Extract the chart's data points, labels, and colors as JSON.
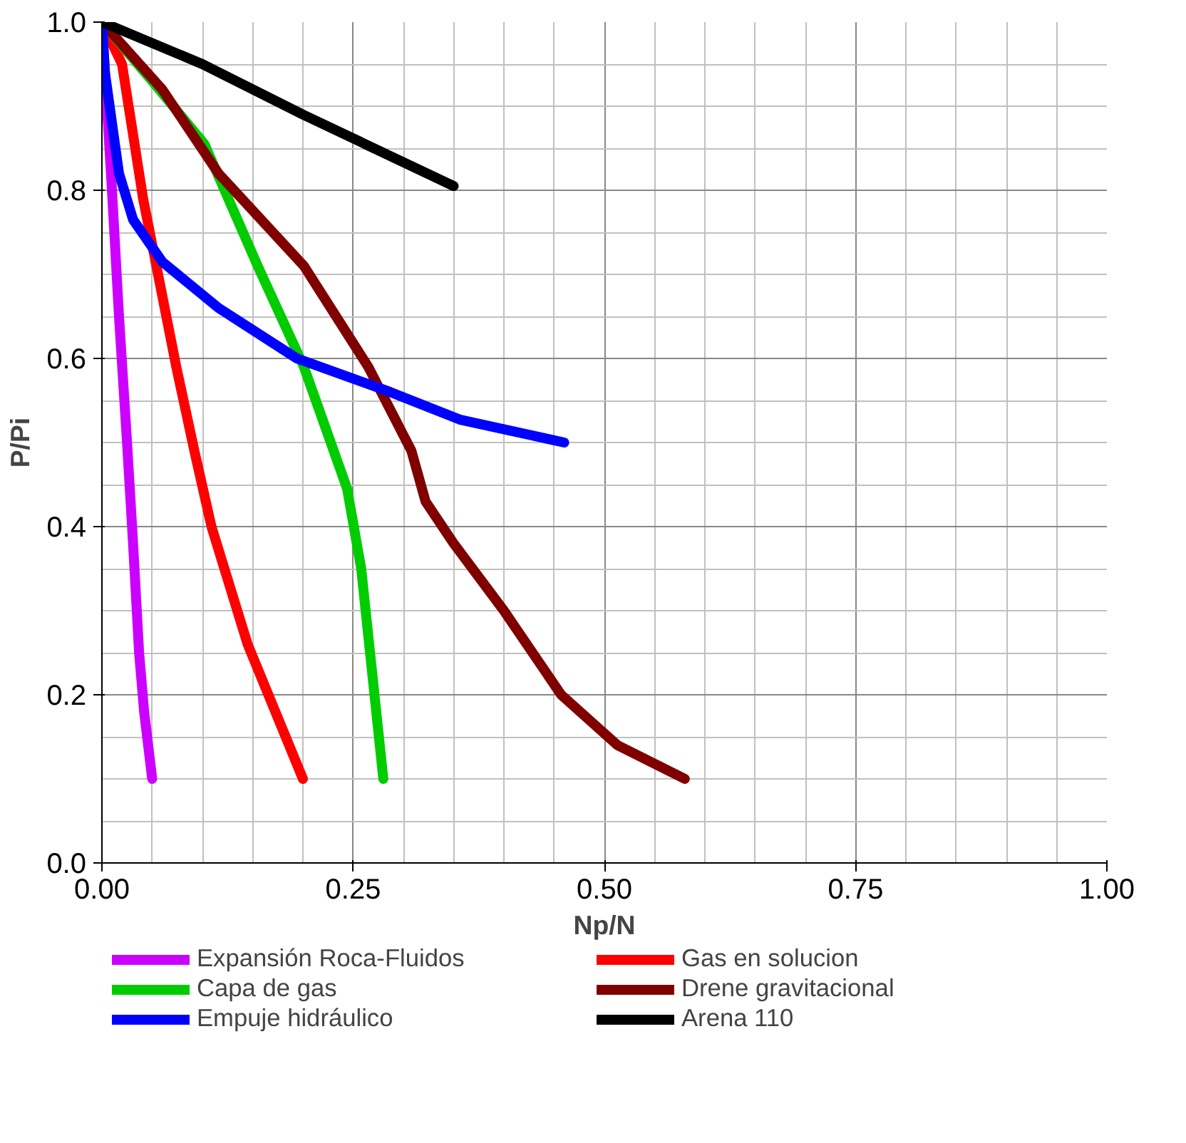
{
  "chart_data": {
    "type": "line",
    "xlabel": "Np/N",
    "ylabel": "P/Pi",
    "xlim": [
      0,
      1
    ],
    "ylim": [
      0,
      1
    ],
    "xticks": [
      {
        "value": 0,
        "label": "0.00"
      },
      0.25,
      {
        "value": 0.5,
        "label": "0.50"
      },
      0.75,
      {
        "value": 1,
        "label": "1.00"
      }
    ],
    "yticks": [
      {
        "value": 0,
        "label": "0.0"
      },
      0.2,
      0.4,
      0.6,
      0.8,
      {
        "value": 1,
        "label": "1.0"
      }
    ],
    "grid": true,
    "legend": "bottom",
    "marker": "none",
    "line_style": "solid",
    "series": [
      {
        "name": "Expansión Roca-Fluidos",
        "color": "#cc00ff",
        "x": [
          0,
          0.01,
          0.017,
          0.025,
          0.031,
          0.037,
          0.042,
          0.05
        ],
        "values": [
          1,
          0.8,
          0.65,
          0.5,
          0.38,
          0.25,
          0.18,
          0.1
        ]
      },
      {
        "name": "Gas en solucion",
        "color": "#ff0000",
        "x": [
          0,
          0.02,
          0.041,
          0.074,
          0.092,
          0.109,
          0.145,
          0.2
        ],
        "values": [
          1,
          0.95,
          0.79,
          0.59,
          0.49,
          0.4,
          0.26,
          0.1
        ]
      },
      {
        "name": "Capa de gas",
        "color": "#00cc00",
        "x": [
          0,
          0.05,
          0.102,
          0.155,
          0.201,
          0.244,
          0.258,
          0.28
        ],
        "values": [
          1,
          0.93,
          0.855,
          0.71,
          0.59,
          0.445,
          0.35,
          0.1
        ]
      },
      {
        "name": "Drene gravitacional",
        "color": "#800000",
        "x": [
          0,
          0.06,
          0.116,
          0.201,
          0.265,
          0.308,
          0.322,
          0.35,
          0.4,
          0.457,
          0.513,
          0.58
        ],
        "values": [
          1,
          0.92,
          0.82,
          0.71,
          0.59,
          0.49,
          0.43,
          0.38,
          0.3,
          0.2,
          0.14,
          0.1
        ]
      },
      {
        "name": "Empuje hidráulico",
        "color": "#0000ff",
        "x": [
          0,
          0.003,
          0.017,
          0.031,
          0.06,
          0.116,
          0.194,
          0.287,
          0.357,
          0.46
        ],
        "values": [
          1,
          0.94,
          0.82,
          0.765,
          0.715,
          0.66,
          0.6,
          0.56,
          0.527,
          0.5
        ]
      },
      {
        "name": "Arena 110",
        "color": "#000000",
        "x": [
          0,
          0.1,
          0.2,
          0.35
        ],
        "values": [
          1,
          0.95,
          0.89,
          0.805
        ]
      }
    ]
  }
}
